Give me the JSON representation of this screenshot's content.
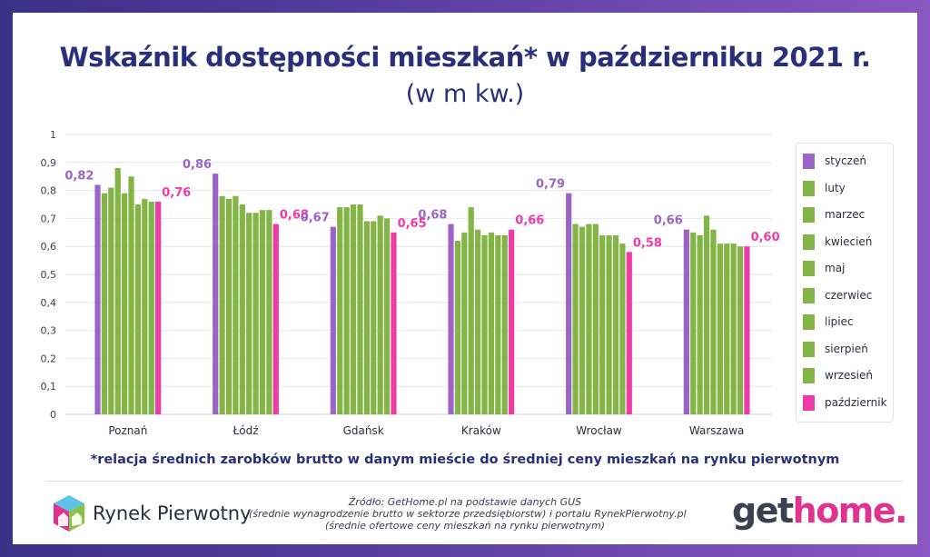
{
  "title": "Wskaźnik dostępności mieszkań* w październiku 2021 r.",
  "subtitle": "(w m kw.)",
  "footnote": "*relacja średnich zarobków brutto w danym mieście do średniej ceny mieszkań na rynku pierwotnym",
  "source": {
    "line1": "Źródło: GetHome.pl na podstawie danych GUS",
    "line2": "(średnie wynagrodzenie brutto w sektorze przedsiębiorstw) i portalu RynekPierwotny.pl",
    "line3": "(średnie ofertowe ceny mieszkań na rynku pierwotnym)"
  },
  "logos": {
    "left": "Rynek Pierwotny",
    "right_part1": "get",
    "right_part2": "home."
  },
  "colors": {
    "purple": "#9b64c6",
    "green": "#82b446",
    "pink": "#f03aa6",
    "title": "#2a2f7c"
  },
  "chart_data": {
    "type": "bar",
    "categories": [
      "Poznań",
      "Łódź",
      "Gdańsk",
      "Kraków",
      "Wrocław",
      "Warszawa"
    ],
    "ylim": [
      0,
      1
    ],
    "yticks": [
      "0",
      "0,1",
      "0,2",
      "0,3",
      "0,4",
      "0,5",
      "0,6",
      "0,7",
      "0,8",
      "0,9",
      "1"
    ],
    "grid": true,
    "legend_position": "right",
    "series": [
      {
        "name": "styczeń",
        "color": "#9b64c6",
        "values": [
          0.82,
          0.86,
          0.67,
          0.68,
          0.79,
          0.66
        ],
        "labels": [
          "0,82",
          "0,86",
          "0,67",
          "0,68",
          "0,79",
          "0,66"
        ]
      },
      {
        "name": "luty",
        "color": "#82b446",
        "values": [
          0.79,
          0.78,
          0.74,
          0.62,
          0.68,
          0.65
        ]
      },
      {
        "name": "marzec",
        "color": "#82b446",
        "values": [
          0.81,
          0.77,
          0.74,
          0.65,
          0.67,
          0.64
        ]
      },
      {
        "name": "kwiecień",
        "color": "#82b446",
        "values": [
          0.88,
          0.78,
          0.75,
          0.74,
          0.68,
          0.71
        ]
      },
      {
        "name": "maj",
        "color": "#82b446",
        "values": [
          0.79,
          0.75,
          0.75,
          0.66,
          0.68,
          0.66
        ]
      },
      {
        "name": "czerwiec",
        "color": "#82b446",
        "values": [
          0.85,
          0.72,
          0.69,
          0.64,
          0.64,
          0.61
        ]
      },
      {
        "name": "lipiec",
        "color": "#82b446",
        "values": [
          0.75,
          0.72,
          0.69,
          0.65,
          0.64,
          0.61
        ]
      },
      {
        "name": "sierpień",
        "color": "#82b446",
        "values": [
          0.77,
          0.73,
          0.71,
          0.64,
          0.64,
          0.61
        ]
      },
      {
        "name": "wrzesień",
        "color": "#82b446",
        "values": [
          0.76,
          0.73,
          0.7,
          0.64,
          0.61,
          0.6
        ]
      },
      {
        "name": "październik",
        "color": "#f03aa6",
        "values": [
          0.76,
          0.68,
          0.65,
          0.66,
          0.58,
          0.6
        ],
        "labels": [
          "0,76",
          "0,68",
          "0,65",
          "0,66",
          "0,58",
          "0,60"
        ]
      }
    ]
  }
}
